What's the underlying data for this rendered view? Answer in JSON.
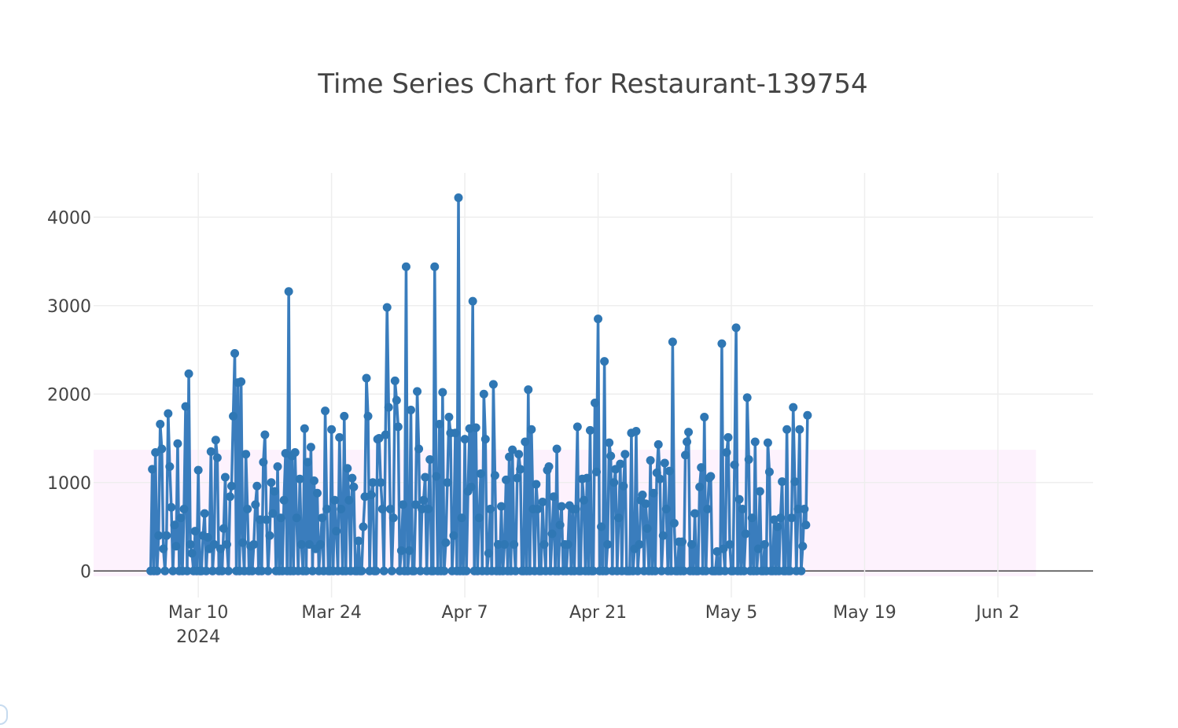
{
  "chart_data": {
    "type": "line",
    "title": "Time Series Chart for Restaurant-139754",
    "xlabel": "",
    "ylabel": "",
    "x_start": "2024-03-05",
    "x_range": [
      "2024-02-28",
      "2024-06-12"
    ],
    "ylim": [
      -300,
      4500
    ],
    "y_ticks": [
      0,
      1000,
      2000,
      3000,
      4000
    ],
    "y_tick_labels": [
      "0",
      "1000",
      "2000",
      "3000",
      "4000"
    ],
    "x_ticks": [
      {
        "date": "2024-03-10",
        "label": "Mar 10",
        "sublabel": "2024"
      },
      {
        "date": "2024-03-24",
        "label": "Mar 24",
        "sublabel": ""
      },
      {
        "date": "2024-04-07",
        "label": "Apr 7",
        "sublabel": ""
      },
      {
        "date": "2024-04-21",
        "label": "Apr 21",
        "sublabel": ""
      },
      {
        "date": "2024-05-05",
        "label": "May 5",
        "sublabel": ""
      },
      {
        "date": "2024-05-19",
        "label": "May 19",
        "sublabel": ""
      },
      {
        "date": "2024-06-02",
        "label": "Jun 2",
        "sublabel": ""
      }
    ],
    "band": {
      "y0": -60,
      "y1": 1370,
      "x0": "2024-02-28",
      "x1": "2024-06-06",
      "color": "#fdf2fd"
    },
    "grid": true,
    "line_color": "#3a7dbd",
    "marker_color": "#2f77b4",
    "series": [
      {
        "step_hours": 4,
        "values": [
          0,
          1150,
          0,
          1340,
          0,
          400,
          1660,
          1380,
          250,
          0,
          400,
          1780,
          1180,
          720,
          0,
          520,
          280,
          1440,
          0,
          600,
          0,
          700,
          1860,
          0,
          2230,
          300,
          200,
          0,
          450,
          0,
          1140,
          0,
          0,
          400,
          650,
          0,
          380,
          250,
          1350,
          0,
          300,
          1480,
          1280,
          0,
          250,
          0,
          480,
          1060,
          300,
          0,
          840,
          960,
          1750,
          2460,
          0,
          2130,
          0,
          2140,
          320,
          0,
          1320,
          700,
          0,
          280,
          0,
          300,
          750,
          960,
          0,
          580,
          0,
          1230,
          1540,
          580,
          0,
          400,
          1000,
          650,
          900,
          0,
          1180,
          0,
          600,
          0,
          800,
          1330,
          0,
          3160,
          0,
          1300,
          0,
          1340,
          600,
          0,
          1040,
          300,
          0,
          1610,
          0,
          1230,
          300,
          1400,
          0,
          1020,
          250,
          880,
          0,
          300,
          600,
          0,
          1810,
          700,
          0,
          0,
          1600,
          0,
          800,
          450,
          0,
          1510,
          700,
          0,
          1750,
          0,
          1160,
          800,
          0,
          1050,
          950,
          0,
          0,
          340,
          0,
          0,
          500,
          840,
          2180,
          1750,
          0,
          860,
          1000,
          0,
          0,
          1490,
          1500,
          1000,
          700,
          0,
          1540,
          2980,
          1850,
          700,
          0,
          600,
          2150,
          1930,
          1630,
          0,
          230,
          750,
          0,
          3440,
          0,
          230,
          1820,
          0,
          0,
          750,
          2030,
          1380,
          0,
          700,
          800,
          1060,
          0,
          700,
          1260,
          0,
          0,
          3440,
          1070,
          0,
          1660,
          0,
          2020,
          0,
          320,
          1000,
          1740,
          1560,
          0,
          400,
          1560,
          0,
          4220,
          0,
          600,
          0,
          1490,
          0,
          900,
          1610,
          950,
          3050,
          0,
          1620,
          0,
          600,
          1100,
          0,
          2000,
          1490,
          0,
          200,
          700,
          0,
          2110,
          1080,
          0,
          300,
          0,
          730,
          0,
          300,
          1030,
          0,
          1290,
          0,
          1370,
          300,
          0,
          1050,
          1320,
          1150,
          0,
          0,
          1460,
          0,
          2050,
          0,
          1600,
          700,
          0,
          980,
          700,
          0,
          0,
          780,
          300,
          0,
          1140,
          1180,
          0,
          420,
          840,
          0,
          1380,
          0,
          520,
          730,
          0,
          300,
          0,
          300,
          740,
          0,
          700,
          0,
          700,
          1630,
          0,
          0,
          1040,
          800,
          0,
          1050,
          0,
          1590,
          0,
          0,
          1900,
          1120,
          2850,
          0,
          500,
          0,
          2370,
          0,
          300,
          1450,
          1300,
          0,
          1000,
          1150,
          0,
          600,
          1210,
          0,
          960,
          1320,
          0,
          0,
          0,
          1560,
          0,
          250,
          1580,
          0,
          300,
          800,
          860,
          0,
          760,
          480,
          0,
          1250,
          0,
          880,
          0,
          1110,
          1430,
          1040,
          0,
          400,
          1220,
          700,
          0,
          1130,
          0,
          2590,
          540,
          0,
          0,
          330,
          0,
          330,
          0,
          1310,
          1460,
          1570,
          0,
          300,
          0,
          650,
          0,
          0,
          950,
          1170,
          0,
          1740,
          0,
          700,
          1050,
          1070,
          0,
          0,
          0,
          220,
          0,
          0,
          2570,
          250,
          0,
          1340,
          1510,
          300,
          0,
          0,
          1200,
          2750,
          0,
          810,
          0,
          700,
          0,
          420,
          1960,
          1260,
          0,
          600,
          0,
          1460,
          0,
          250,
          900,
          0,
          0,
          300,
          0,
          1450,
          1120,
          0,
          0,
          580,
          0,
          500,
          0,
          600,
          1010,
          0,
          0,
          1600,
          0,
          0,
          600,
          1850,
          1010,
          0,
          700,
          1600,
          0,
          280,
          700,
          520,
          1760
        ]
      }
    ]
  }
}
